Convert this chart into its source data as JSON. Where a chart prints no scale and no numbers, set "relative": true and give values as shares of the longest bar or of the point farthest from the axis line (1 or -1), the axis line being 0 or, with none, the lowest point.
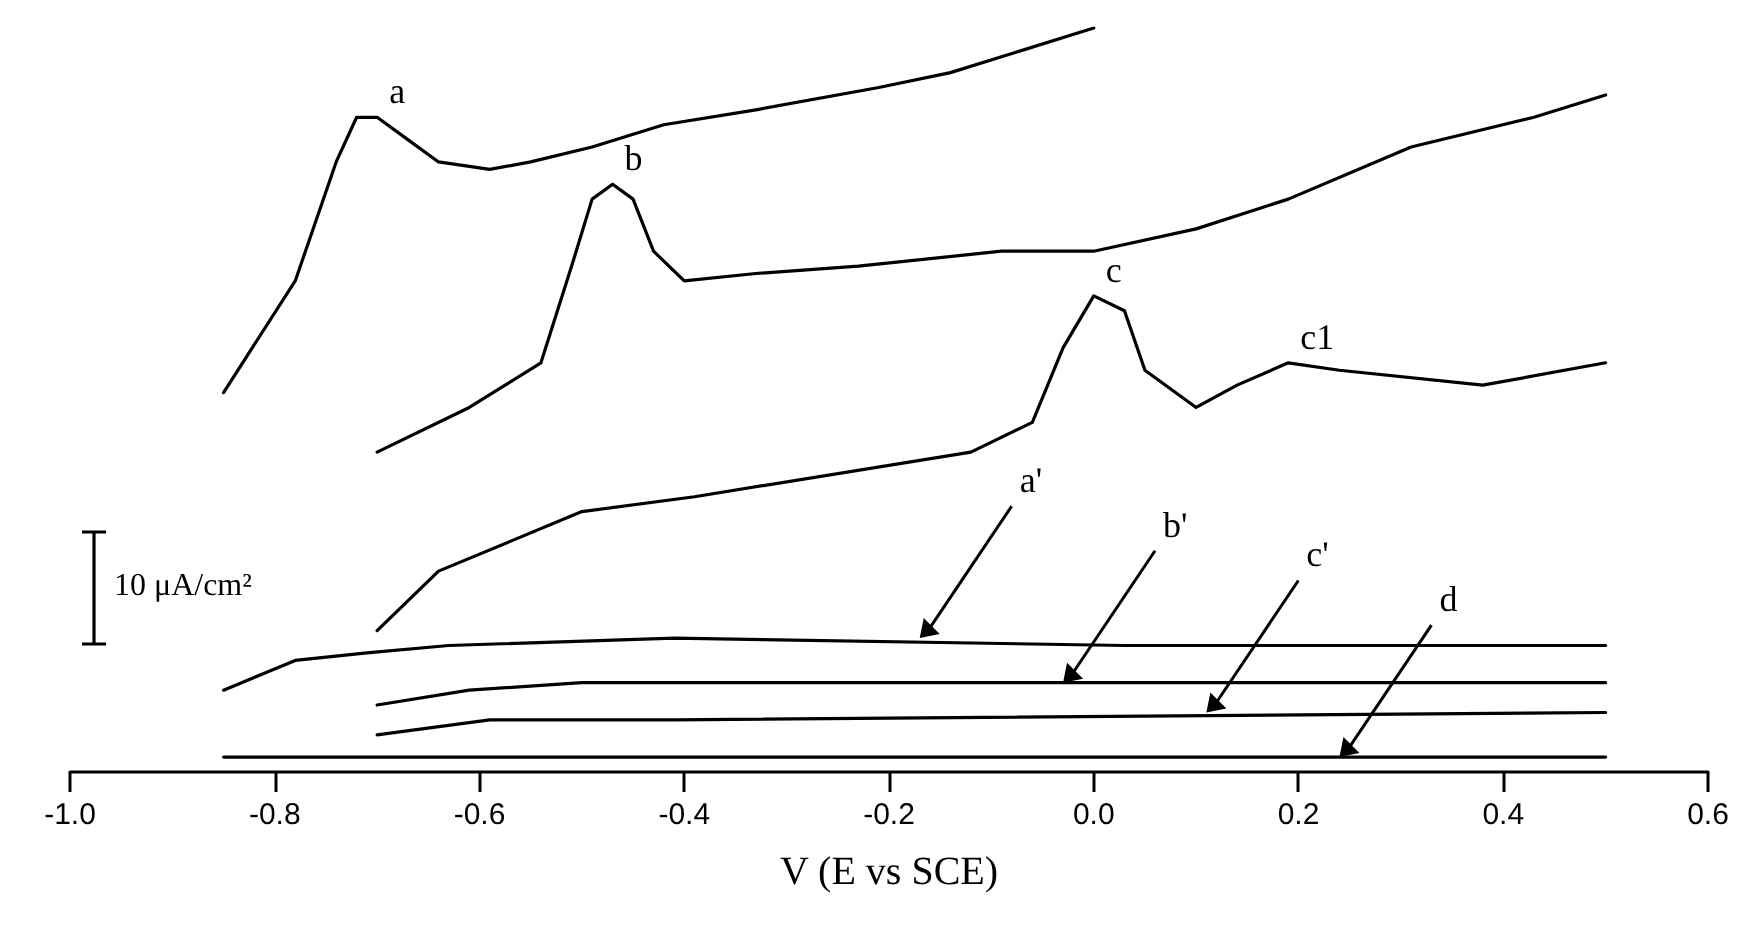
{
  "chart_data": {
    "type": "line",
    "relative": true,
    "xlabel": "V (E vs SCE)",
    "xlim": [
      -1.0,
      0.6
    ],
    "xticks": [
      {
        "value": -1.0,
        "label": "-1.0"
      },
      -0.8,
      -0.6,
      -0.4,
      -0.2,
      {
        "value": 0.0,
        "label": "0.0"
      },
      0.2,
      0.4,
      0.6
    ],
    "grid": false,
    "marker": "none",
    "line_style": "solid",
    "tick_labels": "x",
    "series": [
      {
        "color": "#000000",
        "x": [
          -0.85,
          -0.78,
          -0.74,
          -0.72,
          -0.7,
          -0.67,
          -0.64,
          -0.59,
          -0.55,
          -0.49,
          -0.42,
          -0.33,
          -0.21,
          -0.14,
          0.0
        ],
        "values": [
          0.51,
          0.66,
          0.82,
          0.88,
          0.88,
          0.85,
          0.82,
          0.81,
          0.82,
          0.84,
          0.87,
          0.89,
          0.92,
          0.94,
          1.0
        ]
      },
      {
        "color": "#000000",
        "x": [
          -0.7,
          -0.61,
          -0.54,
          -0.51,
          -0.49,
          -0.47,
          -0.45,
          -0.43,
          -0.4,
          -0.33,
          -0.23,
          -0.09,
          0.0,
          0.1,
          0.19,
          0.31,
          0.43,
          0.5
        ],
        "values": [
          0.43,
          0.49,
          0.55,
          0.68,
          0.77,
          0.79,
          0.77,
          0.7,
          0.66,
          0.67,
          0.68,
          0.7,
          0.7,
          0.73,
          0.77,
          0.84,
          0.88,
          0.91
        ]
      },
      {
        "color": "#000000",
        "x": [
          -0.7,
          -0.64,
          -0.57,
          -0.5,
          -0.39,
          -0.12,
          -0.06,
          -0.03,
          0.0,
          0.03,
          0.05,
          0.1,
          0.14,
          0.19,
          0.24,
          0.38,
          0.5
        ],
        "values": [
          0.19,
          0.27,
          0.31,
          0.35,
          0.37,
          0.43,
          0.47,
          0.57,
          0.64,
          0.62,
          0.54,
          0.49,
          0.52,
          0.55,
          0.54,
          0.52,
          0.55
        ]
      },
      {
        "color": "#000000",
        "x": [
          -0.85,
          -0.78,
          -0.71,
          -0.63,
          -0.41,
          0.03,
          0.5
        ],
        "values": [
          0.11,
          0.15,
          0.16,
          0.17,
          0.18,
          0.17,
          0.17
        ]
      },
      {
        "color": "#000000",
        "x": [
          -0.7,
          -0.61,
          -0.5,
          0.5
        ],
        "values": [
          0.09,
          0.11,
          0.12,
          0.12
        ]
      },
      {
        "color": "#000000",
        "x": [
          -0.7,
          -0.59,
          -0.41,
          0.5
        ],
        "values": [
          0.05,
          0.07,
          0.07,
          0.08
        ]
      },
      {
        "color": "#000000",
        "x": [
          -0.85,
          0.5
        ],
        "values": [
          0.02,
          0.02
        ]
      }
    ],
    "annotations": [
      "10 μA/cm²",
      {
        "text": "a",
        "x": -0.7,
        "y": 0.88
      },
      {
        "text": "b",
        "x": -0.47,
        "y": 0.79
      },
      {
        "text": "c",
        "x": 0.0,
        "y": 0.64
      },
      {
        "text": "c1",
        "x": 0.19,
        "y": 0.55
      },
      {
        "text": "a'",
        "x": -0.17,
        "y": 0.18
      },
      {
        "text": "b'",
        "x": -0.03,
        "y": 0.12
      },
      {
        "text": "c'",
        "x": 0.11,
        "y": 0.08
      },
      {
        "text": "d",
        "x": 0.24,
        "y": 0.02
      }
    ]
  }
}
